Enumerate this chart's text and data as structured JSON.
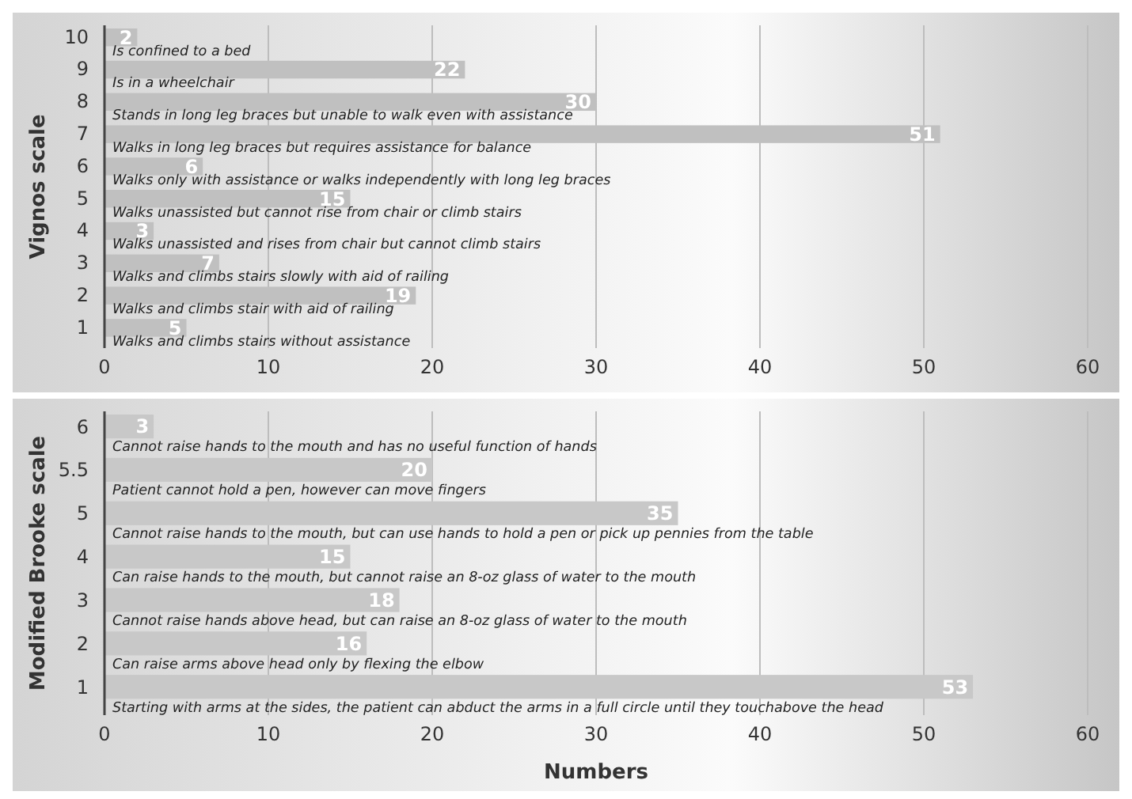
{
  "chart_data": [
    {
      "type": "bar",
      "orientation": "horizontal",
      "ylabel": "Vignos scale",
      "categories": [
        "10",
        "9",
        "8",
        "7",
        "6",
        "5",
        "4",
        "3",
        "2",
        "1"
      ],
      "values": [
        2,
        22,
        30,
        51,
        6,
        15,
        3,
        7,
        19,
        5
      ],
      "color": "#c0c0c0",
      "xlim": [
        0,
        60
      ],
      "xticks": [
        0,
        10,
        20,
        30,
        40,
        50,
        60
      ],
      "grid": "x",
      "data_labels": true,
      "annotations": [
        "Is confined to a bed",
        "Is in a wheelchair",
        "Stands in long leg braces but unable to walk even with assistance",
        "Walks in long leg braces but requires assistance for balance",
        "Walks only with assistance or walks independently with long leg braces",
        "Walks unassisted but cannot rise from chair or climb stairs",
        "Walks unassisted and rises from chair but cannot climb stairs",
        "Walks and climbs stairs slowly with aid of railing",
        "Walks and climbs stair with aid of railing",
        "Walks and climbs stairs without assistance"
      ]
    },
    {
      "type": "bar",
      "orientation": "horizontal",
      "ylabel": "Modified Brooke scale",
      "xlabel": "Numbers",
      "categories": [
        "6",
        "5.5",
        "5",
        "4",
        "3",
        "2",
        "1"
      ],
      "values": [
        3,
        20,
        35,
        15,
        18,
        16,
        53
      ],
      "color": "#c8c8c8",
      "xlim": [
        0,
        60
      ],
      "xticks": [
        0,
        10,
        20,
        30,
        40,
        50,
        60
      ],
      "grid": "x",
      "data_labels": true,
      "annotations": [
        "Cannot raise hands to the mouth and has no useful function of hands",
        "Patient cannot hold a pen, however can move fingers",
        "Cannot raise hands to the mouth, but can use hands to hold a pen or pick up pennies from the table",
        "Can raise hands to the mouth, but cannot raise an 8-oz glass of water to the mouth",
        "Cannot raise hands above head, but can raise an 8-oz glass of water to the mouth",
        "Can raise arms above head only by flexing the elbow",
        "Starting with arms at the sides, the patient can abduct the arms in a full circle until they touchabove the head"
      ]
    }
  ]
}
